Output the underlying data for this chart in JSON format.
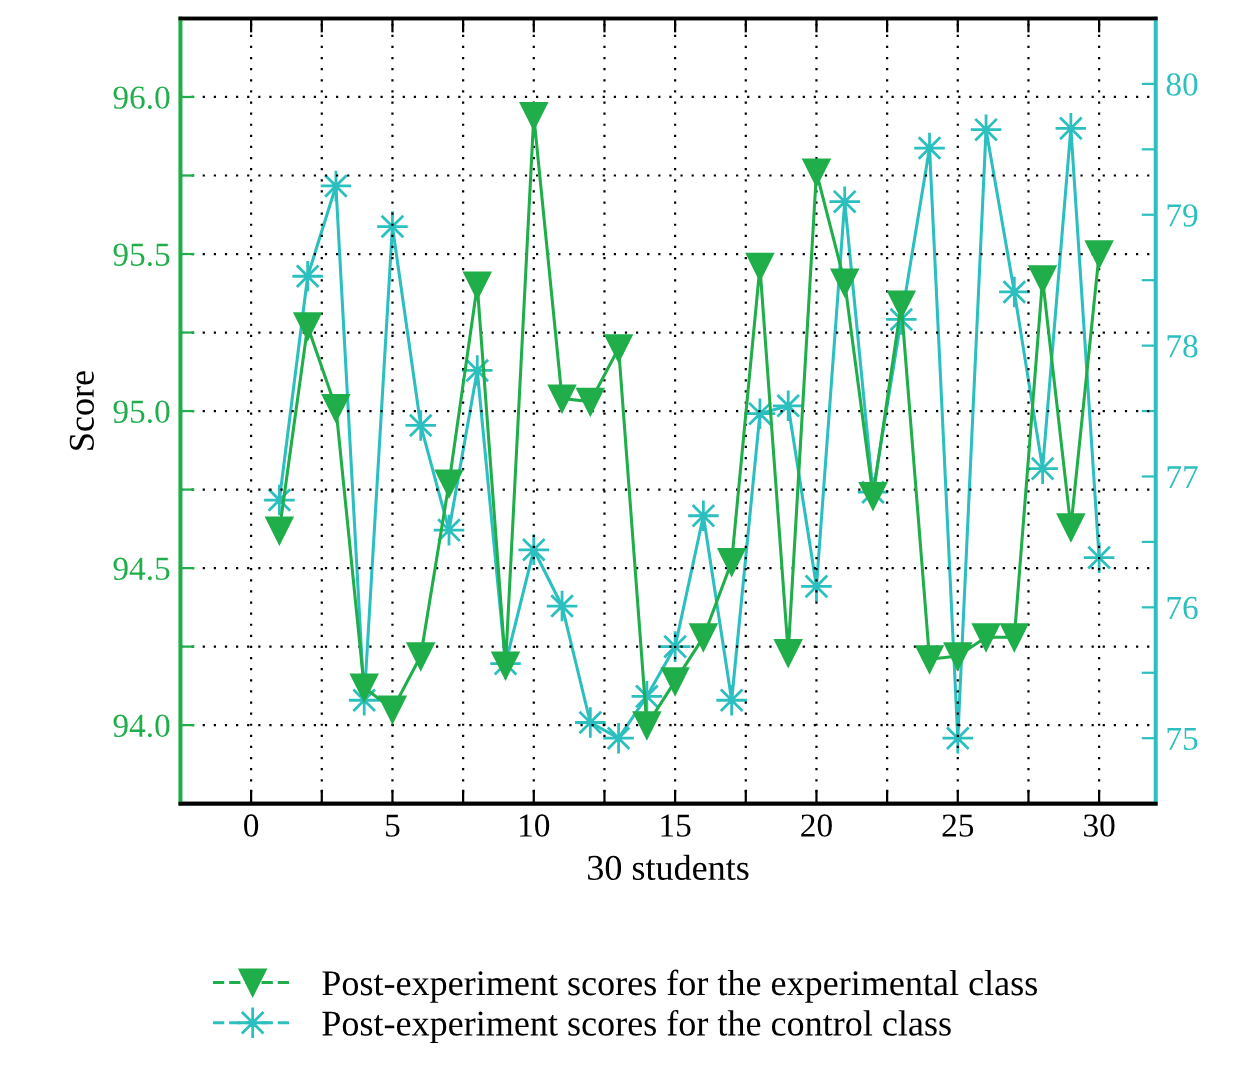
{
  "chart_data": {
    "type": "line",
    "xlabel": "30 students",
    "ylabel": "Score",
    "x": [
      1,
      2,
      3,
      4,
      5,
      6,
      7,
      8,
      9,
      10,
      11,
      12,
      13,
      14,
      15,
      16,
      17,
      18,
      19,
      20,
      21,
      22,
      23,
      24,
      25,
      26,
      27,
      28,
      29,
      30
    ],
    "series": [
      {
        "name": "Post-experiment scores for the experimental class",
        "color": "#1fae4a",
        "marker": "triangle",
        "values": [
          94.62,
          95.27,
          95.01,
          94.12,
          94.05,
          94.22,
          94.77,
          95.4,
          94.19,
          95.94,
          95.04,
          95.03,
          95.2,
          94.0,
          94.14,
          94.28,
          94.52,
          95.46,
          94.23,
          95.76,
          95.41,
          94.73,
          95.34,
          94.21,
          94.22,
          94.28,
          94.28,
          95.42,
          94.63,
          95.5
        ]
      },
      {
        "name": "Post-experiment scores for the control class",
        "color": "#2cbfbf",
        "marker": "star",
        "axis": "y2",
        "values": [
          76.82,
          78.53,
          79.22,
          75.29,
          78.91,
          77.39,
          76.59,
          77.81,
          75.57,
          76.44,
          76.01,
          75.12,
          75.0,
          75.32,
          75.7,
          76.7,
          75.29,
          77.48,
          77.54,
          76.16,
          79.1,
          76.88,
          78.2,
          79.51,
          75.0,
          79.65,
          78.41,
          77.06,
          79.66,
          76.38
        ]
      }
    ],
    "xlim": [
      -2.5,
      32
    ],
    "xticks": [
      0,
      {
        "value": 2.5,
        "label": null
      },
      5,
      {
        "value": 7.5,
        "label": null
      },
      10,
      {
        "value": 12.5,
        "label": null
      },
      15,
      {
        "value": 17.5,
        "label": null
      },
      20,
      {
        "value": 22.5,
        "label": null
      },
      25,
      {
        "value": 27.5,
        "label": null
      },
      30
    ],
    "ylim": [
      93.75,
      96.25
    ],
    "yticks": [
      {
        "value": 93.75,
        "label": null
      },
      {
        "value": 94.0,
        "label": "94.0"
      },
      {
        "value": 94.25,
        "label": null
      },
      {
        "value": 94.5,
        "label": "94.5"
      },
      {
        "value": 94.75,
        "label": null
      },
      {
        "value": 95.0,
        "label": "95.0"
      },
      {
        "value": 95.25,
        "label": null
      },
      {
        "value": 95.5,
        "label": "95.5"
      },
      {
        "value": 95.75,
        "label": null
      },
      {
        "value": 96.0,
        "label": "96.0"
      }
    ],
    "y2lim": [
      74.5,
      80.5
    ],
    "y2ticks": [
      {
        "value": 74.5,
        "label": null
      },
      75,
      {
        "value": 75.5,
        "label": null
      },
      76,
      {
        "value": 76.5,
        "label": null
      },
      77,
      {
        "value": 77.5,
        "label": null
      },
      78,
      {
        "value": 78.5,
        "label": null
      },
      79,
      {
        "value": 79.5,
        "label": null
      },
      80
    ],
    "grid": true,
    "legend": "bottom",
    "line_style": "solid"
  }
}
